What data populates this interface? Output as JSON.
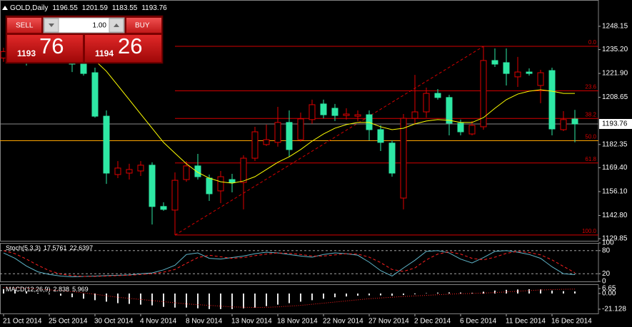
{
  "trade_panel": {
    "sell": "SELL",
    "buy": "BUY",
    "lot": "1.00",
    "bid": [
      "1193",
      "76"
    ],
    "ask": [
      "1194",
      "26"
    ]
  },
  "chart_data": [
    {
      "type": "candlestick",
      "title": "GOLD,Daily",
      "categories": [
        "21 Oct 2014",
        null,
        null,
        null,
        "25 Oct 2014",
        null,
        null,
        null,
        "30 Oct 2014",
        null,
        null,
        null,
        "4 Nov 2014",
        null,
        null,
        null,
        "8 Nov 2014",
        null,
        null,
        null,
        "13 Nov 2014",
        null,
        null,
        null,
        "18 Nov 2014",
        null,
        null,
        null,
        "22 Nov 2014",
        null,
        null,
        null,
        "27 Nov 2014",
        null,
        null,
        null,
        "2 Dec 2014",
        null,
        null,
        null,
        "6 Dec 2014",
        null,
        null,
        null,
        "11 Dec 2014",
        null,
        null,
        null,
        "16 Dec 2014",
        null,
        null
      ],
      "ohlc": [
        [
          1230.5,
          1236.2,
          1228.4,
          1234.1
        ],
        [
          1234.1,
          1236.5,
          1229.0,
          1230.2
        ],
        [
          1230.2,
          1233.0,
          1226.3,
          1228.6
        ],
        [
          1228.6,
          1234.1,
          1227.8,
          1232.5
        ],
        [
          1232.5,
          1235.9,
          1228.2,
          1229.4
        ],
        [
          1229.4,
          1233.3,
          1227.5,
          1231.2
        ],
        [
          1231.2,
          1232.9,
          1222.7,
          1227.1
        ],
        [
          1227.1,
          1229.5,
          1220.7,
          1221.9
        ],
        [
          1222.3,
          1225.1,
          1197.3,
          1198.1
        ],
        [
          1198.1,
          1201.3,
          1160.4,
          1166.4
        ],
        [
          1165.6,
          1173.1,
          1163.6,
          1169.2
        ],
        [
          1166.4,
          1171.6,
          1162.8,
          1168.4
        ],
        [
          1167.6,
          1173.1,
          1164.8,
          1170.8
        ],
        [
          1170.8,
          1172.4,
          1137.8,
          1147.8
        ],
        [
          1147.8,
          1150.1,
          1145.4,
          1146.2
        ],
        [
          1145.8,
          1166.8,
          1131.9,
          1162.4
        ],
        [
          1162.8,
          1173.1,
          1161.6,
          1170.4
        ],
        [
          1170.4,
          1177.1,
          1162.8,
          1164.4
        ],
        [
          1163.6,
          1165.6,
          1150.9,
          1154.9
        ],
        [
          1156.5,
          1167.6,
          1149.7,
          1164.4
        ],
        [
          1162.8,
          1166.0,
          1155.7,
          1161.2
        ],
        [
          1161.2,
          1176.3,
          1146.2,
          1174.7
        ],
        [
          1174.7,
          1192.2,
          1173.1,
          1189.4
        ],
        [
          1182.3,
          1193.4,
          1181.5,
          1185.0
        ],
        [
          1183.5,
          1203.3,
          1181.1,
          1194.6
        ],
        [
          1194.6,
          1201.3,
          1175.5,
          1179.5
        ],
        [
          1185.0,
          1200.1,
          1183.9,
          1196.6
        ],
        [
          1196.2,
          1207.3,
          1193.8,
          1204.5
        ],
        [
          1204.9,
          1207.3,
          1196.9,
          1198.9
        ],
        [
          1202.5,
          1204.9,
          1195.4,
          1198.5
        ],
        [
          1198.5,
          1202.5,
          1196.2,
          1199.3
        ],
        [
          1198.1,
          1201.3,
          1195.4,
          1198.9
        ],
        [
          1198.9,
          1201.3,
          1184.6,
          1190.6
        ],
        [
          1190.6,
          1193.0,
          1178.7,
          1183.5
        ],
        [
          1183.1,
          1184.6,
          1164.4,
          1166.4
        ],
        [
          1152.5,
          1199.3,
          1146.2,
          1196.9
        ],
        [
          1196.9,
          1221.1,
          1193.4,
          1200.5
        ],
        [
          1200.5,
          1214.0,
          1197.3,
          1210.8
        ],
        [
          1210.8,
          1213.2,
          1207.3,
          1208.5
        ],
        [
          1208.5,
          1210.0,
          1187.4,
          1194.2
        ],
        [
          1194.2,
          1196.2,
          1187.4,
          1189.4
        ],
        [
          1188.2,
          1195.4,
          1187.4,
          1193.0
        ],
        [
          1192.2,
          1237.0,
          1190.6,
          1229.1
        ],
        [
          1229.1,
          1235.8,
          1225.5,
          1227.1
        ],
        [
          1227.9,
          1235.8,
          1215.2,
          1221.9
        ],
        [
          1220.0,
          1231.1,
          1214.4,
          1222.7
        ],
        [
          1222.7,
          1224.7,
          1220.7,
          1221.9
        ],
        [
          1215.2,
          1223.9,
          1205.3,
          1222.3
        ],
        [
          1223.5,
          1225.1,
          1187.4,
          1191.0
        ],
        [
          1190.6,
          1200.9,
          1189.8,
          1196.2
        ],
        [
          1196.55,
          1201.59,
          1183.55,
          1193.76
        ]
      ],
      "up_color": "#e00000",
      "down_color": "#2ee8a4",
      "ma": {
        "color": "#ffff00",
        "values": [
          null,
          null,
          null,
          null,
          null,
          null,
          null,
          null,
          1229.1,
          1223.1,
          1215.2,
          1207.3,
          1199.3,
          1191.4,
          1183.5,
          1177.5,
          1171.6,
          1166.8,
          1163.6,
          1161.6,
          1160.8,
          1162.0,
          1164.4,
          1168.4,
          1172.4,
          1175.5,
          1179.5,
          1184.2,
          1188.2,
          1191.4,
          1193.4,
          1194.6,
          1194.6,
          1192.2,
          1190.6,
          1191.4,
          1193.8,
          1195.4,
          1196.2,
          1195.8,
          1194.6,
          1194.6,
          1197.3,
          1202.5,
          1207.3,
          1210.4,
          1212.0,
          1212.8,
          1212.0,
          1210.8,
          1210.8
        ]
      },
      "fibonacci": {
        "color": "#d40000",
        "levels": [
          {
            "value": 0,
            "label": "0.0"
          },
          23.6,
          38.2,
          {
            "value": 50,
            "label": "50.0",
            "color": "#ffa500"
          },
          61.8,
          {
            "value": 100,
            "label": "100.0"
          }
        ]
      },
      "ylim": [
        1128.7,
        1262.8
      ],
      "yticks": [
        1248.15,
        {
          "value": 1235.2,
          "label": "1235.20"
        },
        {
          "value": 1221.9,
          "label": "1221.90"
        },
        1208.65,
        1182.35,
        {
          "value": 1169.4,
          "label": "1169.40"
        },
        {
          "value": 1156.1,
          "label": "1156.10"
        },
        {
          "value": 1142.8,
          "label": "1142.80"
        },
        1129.85
      ]
    },
    {
      "type": "line",
      "title": "Stoch(5,3,3)",
      "series": [
        {
          "color": "#5fb4c8",
          "style": "solid",
          "values": [
            74,
            60,
            40,
            25,
            18,
            14,
            12,
            13,
            14,
            15,
            16,
            17,
            20,
            22,
            30,
            42,
            70,
            74,
            60,
            58,
            62,
            66,
            72,
            76,
            74,
            70,
            66,
            63,
            70,
            74,
            72,
            68,
            50,
            28,
            14,
            35,
            55,
            78,
            80,
            74,
            58,
            48,
            62,
            78,
            80,
            76,
            70,
            60,
            38,
            20,
            17.5761
          ]
        },
        {
          "color": "#ff2020",
          "style": "dashed",
          "values": [
            80,
            72,
            58,
            42,
            28,
            19,
            15,
            13,
            13,
            14,
            15,
            16,
            18,
            20,
            24,
            31,
            47,
            62,
            68,
            64,
            60,
            62,
            67,
            71,
            74,
            73,
            70,
            66,
            66,
            69,
            72,
            71,
            63,
            49,
            31,
            26,
            35,
            56,
            71,
            77,
            71,
            60,
            56,
            63,
            73,
            78,
            75,
            69,
            56,
            39,
            22.6397
          ]
        }
      ],
      "ylim": [
        0,
        100
      ],
      "yticks": [
        100,
        80,
        20,
        0
      ],
      "grid": true
    },
    {
      "type": "macd",
      "title": "MACD(12,26,9)",
      "series": [
        {
          "color": "#e8e8e8",
          "style": "histogram",
          "values": [
            6,
            5,
            3,
            1,
            -1,
            -3,
            -5,
            -7,
            -9,
            -11,
            -13,
            -14,
            -15,
            -16,
            -18,
            -19,
            -19,
            -20,
            -21,
            -21,
            -21,
            -20,
            -19,
            -17,
            -15,
            -13,
            -11,
            -9,
            -7,
            -5,
            -4,
            -3,
            -2.5,
            -2.5,
            -3,
            -2,
            -1,
            0.5,
            1.2,
            1.5,
            1.3,
            1.0,
            2.5,
            4,
            5,
            5.5,
            5.8,
            5.6,
            4,
            3.2,
            2.838
          ]
        },
        {
          "color": "#ff2020",
          "style": "dotted",
          "values": [
            8,
            7.5,
            7,
            6,
            5,
            4,
            2.5,
            1,
            -1,
            -3,
            -5,
            -6.5,
            -8,
            -9.5,
            -11,
            -12.5,
            -14,
            -15,
            -16,
            -17,
            -18,
            -18.5,
            -18.8,
            -18.6,
            -18,
            -17,
            -16,
            -14.5,
            -13,
            -11.5,
            -10,
            -8.5,
            -7,
            -6,
            -5,
            -4,
            -3.2,
            -2.5,
            -1.6,
            -0.9,
            -0.3,
            0.1,
            0.6,
            1.3,
            2.2,
            3.1,
            4,
            4.8,
            5.3,
            5.7,
            5.969
          ]
        }
      ],
      "ylim": [
        -26.9,
        12.5
      ],
      "yticks": [
        6.65,
        {
          "value": 0,
          "label": "0.00"
        },
        -21.128
      ],
      "grid": false
    }
  ]
}
